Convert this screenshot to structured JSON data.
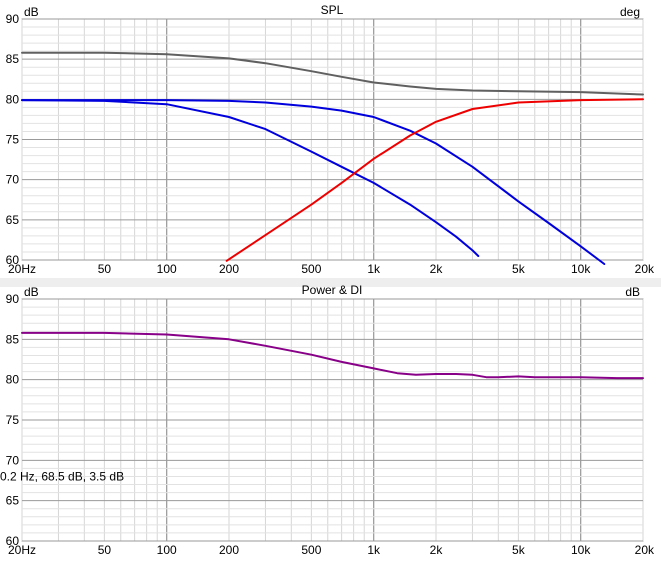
{
  "chart_data": [
    {
      "type": "line",
      "title": "SPL",
      "ylabel": "dB",
      "ylabel_right": "deg",
      "x_scale": "log",
      "xlim": [
        20,
        20000
      ],
      "ylim": [
        60,
        90
      ],
      "x_ticks": [
        20,
        50,
        100,
        200,
        500,
        1000,
        2000,
        5000,
        10000,
        20000
      ],
      "x_tick_labels": [
        "20Hz",
        "50",
        "100",
        "200",
        "500",
        "1k",
        "2k",
        "5k",
        "10k",
        "20k"
      ],
      "y_ticks": [
        60,
        65,
        70,
        75,
        80,
        85,
        90
      ],
      "y_tick_labels": [
        "60",
        "65",
        "70",
        "75",
        "80",
        "85",
        "90"
      ],
      "grid": true,
      "series": [
        {
          "color": "#606060",
          "x": [
            20,
            50,
            100,
            200,
            300,
            500,
            700,
            1000,
            1500,
            2000,
            3000,
            5000,
            10000,
            20000
          ],
          "values": [
            85.8,
            85.8,
            85.6,
            85.1,
            84.5,
            83.5,
            82.8,
            82.1,
            81.6,
            81.3,
            81.1,
            81.0,
            80.9,
            80.6
          ]
        },
        {
          "color": "#0000dd",
          "x": [
            20,
            50,
            100,
            200,
            300,
            500,
            700,
            1000,
            1500,
            2000,
            3000,
            5000,
            7000,
            10000,
            13000
          ],
          "values": [
            79.9,
            79.9,
            79.9,
            79.8,
            79.6,
            79.1,
            78.6,
            77.8,
            76.1,
            74.5,
            71.6,
            67.3,
            64.6,
            61.7,
            59.5
          ]
        },
        {
          "color": "#0000dd",
          "x": [
            20,
            50,
            100,
            200,
            300,
            500,
            700,
            1000,
            1500,
            2000,
            2500,
            3000,
            3200
          ],
          "values": [
            79.9,
            79.8,
            79.4,
            77.8,
            76.3,
            73.5,
            71.6,
            69.6,
            66.9,
            64.7,
            62.9,
            61.2,
            60.5
          ]
        },
        {
          "color": "#ee0000",
          "x": [
            195,
            300,
            500,
            700,
            1000,
            1500,
            2000,
            3000,
            5000,
            10000,
            20000
          ],
          "values": [
            59.9,
            63.1,
            66.9,
            69.6,
            72.6,
            75.5,
            77.2,
            78.8,
            79.6,
            79.9,
            80.0
          ]
        }
      ]
    },
    {
      "type": "line",
      "title": "Power & DI",
      "ylabel": "dB",
      "ylabel_right": "dB",
      "x_scale": "log",
      "xlim": [
        20,
        20000
      ],
      "ylim": [
        60,
        90
      ],
      "x_ticks": [
        20,
        50,
        100,
        200,
        500,
        1000,
        2000,
        5000,
        10000,
        20000
      ],
      "x_tick_labels": [
        "20Hz",
        "50",
        "100",
        "200",
        "500",
        "1k",
        "2k",
        "5k",
        "10k",
        "20k"
      ],
      "y_ticks": [
        60,
        65,
        70,
        75,
        80,
        85,
        90
      ],
      "y_tick_labels": [
        "60",
        "65",
        "70",
        "75",
        "80",
        "85",
        "90"
      ],
      "grid": true,
      "cursor_readout": "0.2 Hz, 68.5 dB, 3.5 dB",
      "series": [
        {
          "color": "#880088",
          "x": [
            20,
            50,
            100,
            200,
            300,
            500,
            700,
            1000,
            1300,
            1600,
            2000,
            2500,
            3000,
            3500,
            4000,
            5000,
            6000,
            8000,
            10000,
            15000,
            20000
          ],
          "values": [
            85.8,
            85.8,
            85.6,
            85.0,
            84.2,
            83.1,
            82.2,
            81.4,
            80.8,
            80.6,
            80.7,
            80.7,
            80.6,
            80.3,
            80.3,
            80.4,
            80.3,
            80.3,
            80.3,
            80.2,
            80.2
          ]
        }
      ]
    }
  ],
  "colors": {
    "background": "#ffffff",
    "plot_background": "#ffffff",
    "grid": "#cfcfcf",
    "separator": "#e4e4e4"
  }
}
